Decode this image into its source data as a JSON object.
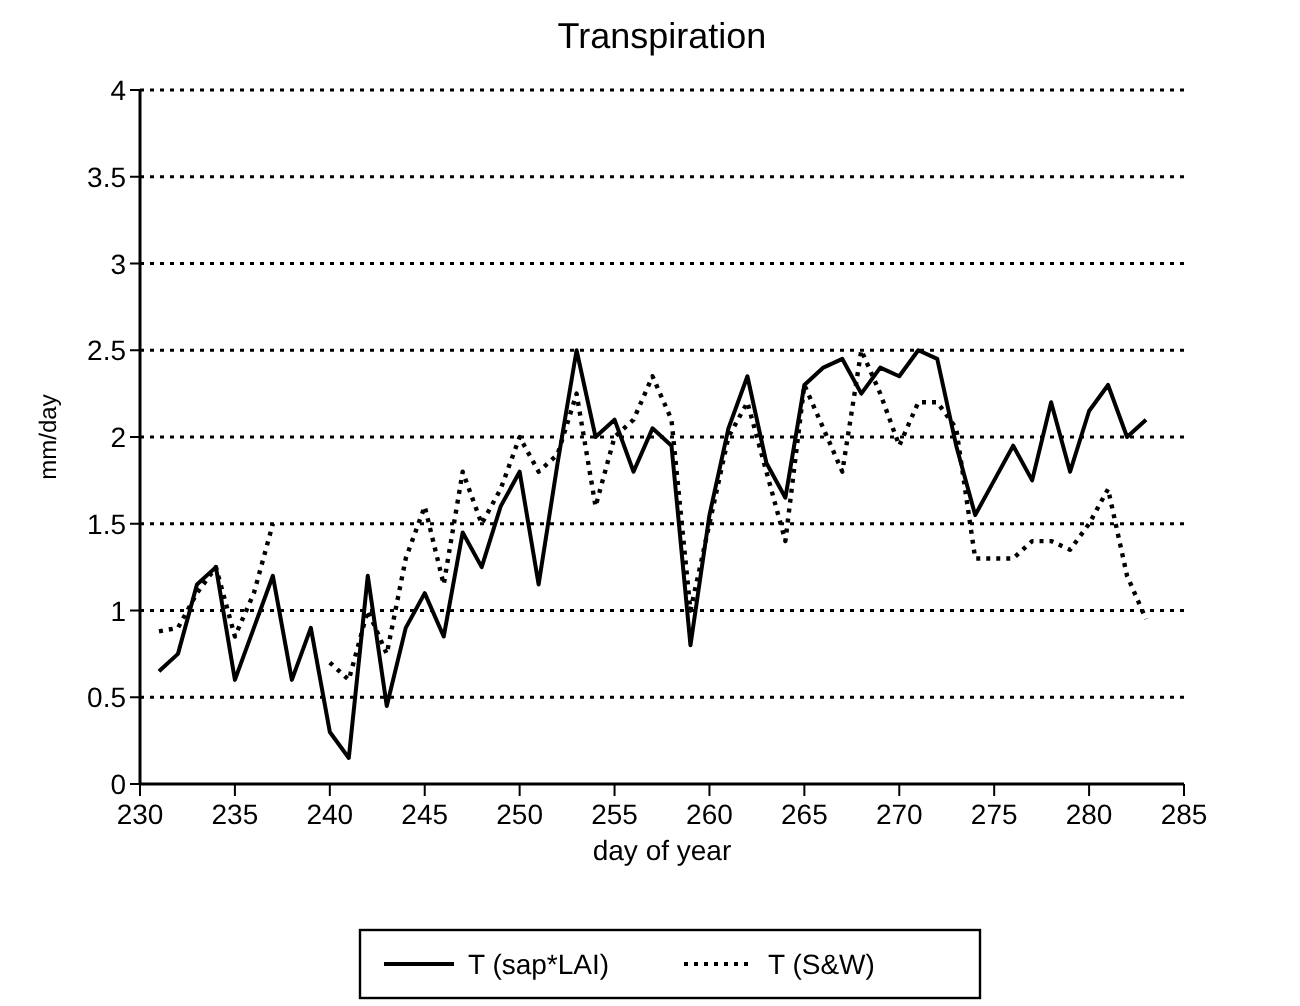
{
  "chart_data": {
    "type": "line",
    "title": "Transpiration",
    "xlabel": "day of year",
    "ylabel": "mm/day",
    "x": [
      231,
      232,
      233,
      234,
      235,
      236,
      237,
      238,
      239,
      240,
      241,
      242,
      243,
      244,
      245,
      246,
      247,
      248,
      249,
      250,
      251,
      252,
      253,
      254,
      255,
      256,
      257,
      258,
      259,
      260,
      261,
      262,
      263,
      264,
      265,
      266,
      267,
      268,
      269,
      270,
      271,
      272,
      273,
      274,
      275,
      276,
      277,
      278,
      279,
      280,
      281,
      282,
      283
    ],
    "series": [
      {
        "name": "T (sap*LAI)",
        "color": "#000000",
        "line_style": "solid",
        "values": [
          0.65,
          0.75,
          1.15,
          1.25,
          0.6,
          0.9,
          1.2,
          0.6,
          0.9,
          0.3,
          0.15,
          1.2,
          0.45,
          0.9,
          1.1,
          0.85,
          1.45,
          1.25,
          1.6,
          1.8,
          1.15,
          1.85,
          2.5,
          2.0,
          2.1,
          1.8,
          2.05,
          1.95,
          0.8,
          1.55,
          2.05,
          2.35,
          1.85,
          1.65,
          2.3,
          2.4,
          2.45,
          2.25,
          2.4,
          2.35,
          2.5,
          2.45,
          1.95,
          1.55,
          1.75,
          1.95,
          1.75,
          2.2,
          1.8,
          2.15,
          2.3,
          2.0,
          2.1
        ]
      },
      {
        "name": "T (S&W)",
        "color": "#000000",
        "line_style": "dotted",
        "values": [
          0.88,
          0.9,
          1.1,
          1.25,
          0.85,
          1.1,
          1.5,
          null,
          null,
          0.7,
          0.6,
          1.0,
          0.75,
          1.3,
          1.6,
          1.15,
          1.8,
          1.5,
          1.7,
          2.0,
          1.8,
          1.9,
          2.25,
          1.6,
          2.0,
          2.1,
          2.35,
          2.1,
          1.0,
          1.5,
          2.0,
          2.2,
          1.8,
          1.4,
          2.3,
          2.05,
          1.8,
          2.5,
          2.25,
          1.95,
          2.2,
          2.2,
          2.05,
          1.3,
          1.3,
          1.3,
          1.4,
          1.4,
          1.35,
          1.5,
          1.7,
          1.2,
          0.95
        ]
      }
    ],
    "xlim": [
      230,
      285
    ],
    "xticks": [
      230,
      235,
      240,
      245,
      250,
      255,
      260,
      265,
      270,
      275,
      280,
      285
    ],
    "ylim": [
      0,
      4
    ],
    "yticks": [
      0,
      0.5,
      1,
      1.5,
      2,
      2.5,
      3,
      3.5,
      4
    ],
    "grid": "y",
    "legend": "bottom"
  }
}
